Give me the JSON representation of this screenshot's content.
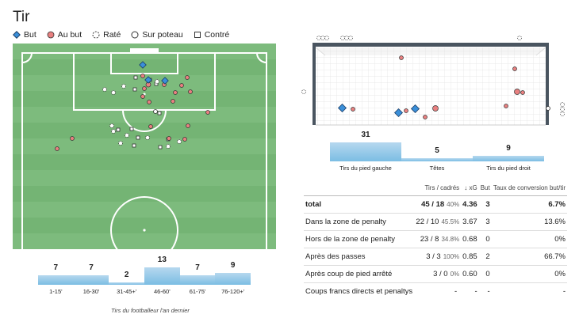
{
  "title": "Tir",
  "legend": [
    {
      "key": "goal",
      "label": "But"
    },
    {
      "key": "ontarget",
      "label": "Au but"
    },
    {
      "key": "missed",
      "label": "Raté"
    },
    {
      "key": "post",
      "label": "Sur poteau"
    },
    {
      "key": "blocked",
      "label": "Contré"
    }
  ],
  "colors": {
    "goal": "#3a8fd9",
    "ontarget": "#e88080",
    "pitch": "#7dbb7d",
    "pitch_dark": "#74b474",
    "bar": "#8cc7e8"
  },
  "time_buckets": [
    {
      "label": "1-15'",
      "value": 7
    },
    {
      "label": "16-30'",
      "value": 7
    },
    {
      "label": "31-45+'",
      "value": 2
    },
    {
      "label": "46-60'",
      "value": 13
    },
    {
      "label": "61-75'",
      "value": 7
    },
    {
      "label": "76-120+'",
      "value": 9
    }
  ],
  "caption": "Tirs du footballeur l'an dernier",
  "shot_types": [
    {
      "label": "Tirs du pied gauche",
      "value": 31
    },
    {
      "label": "Têtes",
      "value": 5
    },
    {
      "label": "Tirs du pied droit",
      "value": 9
    }
  ],
  "stats_header": {
    "col1": "Tirs / cadrés",
    "col2": "↓ xG",
    "col3": "But",
    "col4": "Taux de conversion but/tir"
  },
  "stats_rows": [
    {
      "label": "total",
      "shots": "45 / 18",
      "pct": "40%",
      "xg": "4.36",
      "goals": "3",
      "conv": "6.7%"
    },
    {
      "label": "Dans la zone de penalty",
      "shots": "22 / 10",
      "pct": "45.5%",
      "xg": "3.67",
      "goals": "3",
      "conv": "13.6%"
    },
    {
      "label": "Hors de la zone de penalty",
      "shots": "23 / 8",
      "pct": "34.8%",
      "xg": "0.68",
      "goals": "0",
      "conv": "0%"
    },
    {
      "label": "Après des passes",
      "shots": "3 / 3",
      "pct": "100%",
      "xg": "0.85",
      "goals": "2",
      "conv": "66.7%"
    },
    {
      "label": "Après coup de pied arrêté",
      "shots": "3 / 0",
      "pct": "0%",
      "xg": "0.60",
      "goals": "0",
      "conv": "0%"
    },
    {
      "label": "Coups francs directs et penaltys",
      "shots": "-",
      "pct": "",
      "xg": "-",
      "goals": "-",
      "conv": "-"
    }
  ]
}
